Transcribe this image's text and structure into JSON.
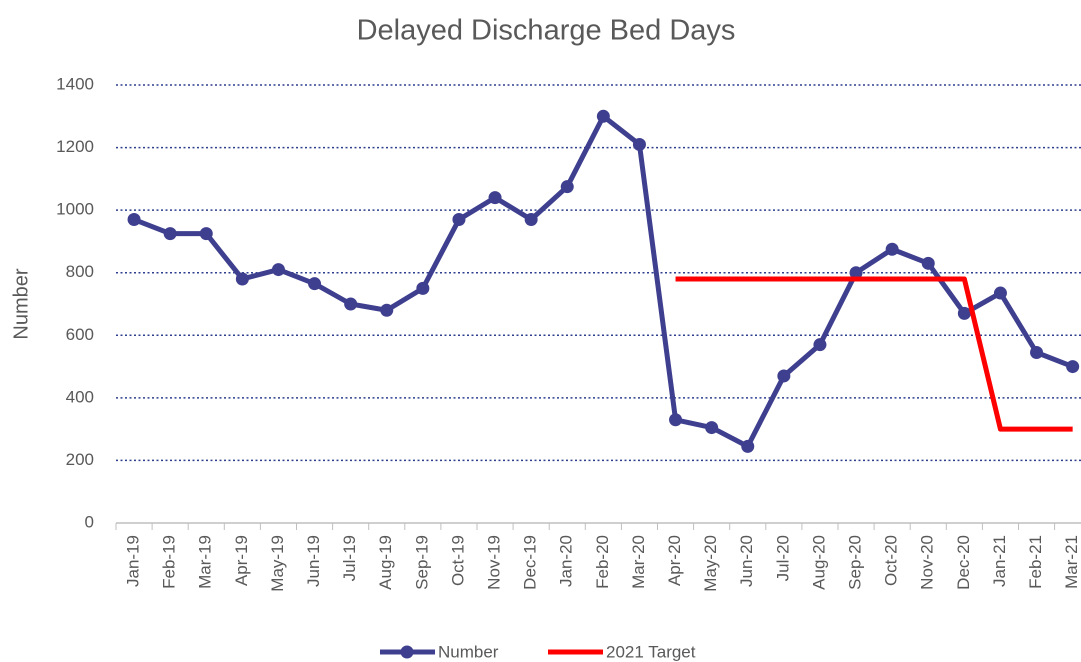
{
  "chart_data": {
    "type": "line",
    "title": "Delayed Discharge Bed Days",
    "y_label": "Number",
    "categories": [
      "Jan-19",
      "Feb-19",
      "Mar-19",
      "Apr-19",
      "May-19",
      "Jun-19",
      "Jul-19",
      "Aug-19",
      "Sep-19",
      "Oct-19",
      "Nov-19",
      "Dec-19",
      "Jan-20",
      "Feb-20",
      "Mar-20",
      "Apr-20",
      "May-20",
      "Jun-20",
      "Jul-20",
      "Aug-20",
      "Sep-20",
      "Oct-20",
      "Nov-20",
      "Dec-20",
      "Jan-21",
      "Feb-21",
      "Mar-21"
    ],
    "series": [
      {
        "name": "Number",
        "color": "#3f3f8f",
        "markers": true,
        "values": [
          970,
          925,
          925,
          780,
          810,
          765,
          700,
          680,
          750,
          970,
          1040,
          970,
          1075,
          1300,
          1210,
          330,
          305,
          245,
          470,
          570,
          800,
          875,
          830,
          670,
          735,
          545,
          500
        ]
      },
      {
        "name": "2021 Target",
        "color": "#ff0000",
        "markers": false,
        "values": [
          null,
          null,
          null,
          null,
          null,
          null,
          null,
          null,
          null,
          null,
          null,
          null,
          null,
          null,
          null,
          780,
          780,
          780,
          780,
          780,
          780,
          780,
          780,
          780,
          300,
          300,
          300
        ]
      }
    ],
    "ylim": [
      0,
      1400
    ],
    "yticks": [
      0,
      200,
      400,
      600,
      800,
      1000,
      1200,
      1400
    ],
    "grid": true,
    "legend": "bottom"
  }
}
